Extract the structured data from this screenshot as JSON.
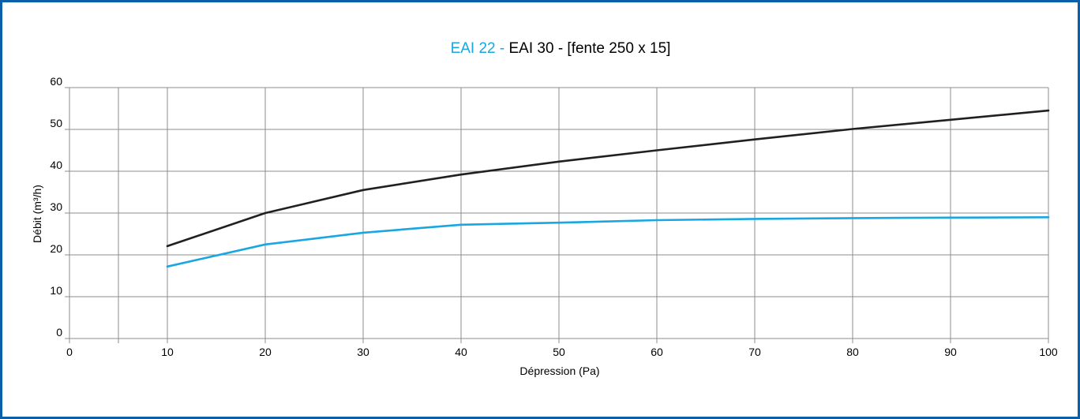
{
  "chart_data": {
    "type": "line",
    "title_parts": [
      {
        "text": "EAI 22 - ",
        "color": "#1aa6e0"
      },
      {
        "text": "EAI 30 - [fente 250 x 15]",
        "color": "#000000"
      }
    ],
    "xlabel": "Dépression (Pa)",
    "ylabel": "Débit (m³/h)",
    "xlim": [
      0,
      100
    ],
    "ylim": [
      0,
      60
    ],
    "x_ticks": [
      0,
      10,
      20,
      30,
      40,
      50,
      60,
      70,
      80,
      90,
      100
    ],
    "y_ticks": [
      0,
      10,
      20,
      30,
      40,
      50,
      60
    ],
    "x_gridlines": [
      0,
      5,
      10,
      20,
      30,
      40,
      50,
      60,
      70,
      80,
      90,
      100
    ],
    "grid": true,
    "series": [
      {
        "name": "EAI 22",
        "color": "#1aa6e0",
        "x": [
          10,
          20,
          30,
          40,
          50,
          60,
          70,
          80,
          90,
          100
        ],
        "y": [
          17.2,
          22.5,
          25.3,
          27.2,
          27.7,
          28.3,
          28.6,
          28.8,
          28.9,
          29.0
        ]
      },
      {
        "name": "EAI 30",
        "color": "#231f20",
        "x": [
          10,
          20,
          30,
          40,
          50,
          60,
          70,
          80,
          90,
          100
        ],
        "y": [
          22.1,
          30.0,
          35.5,
          39.2,
          42.3,
          45.0,
          47.6,
          50.1,
          52.3,
          54.5
        ]
      }
    ]
  }
}
